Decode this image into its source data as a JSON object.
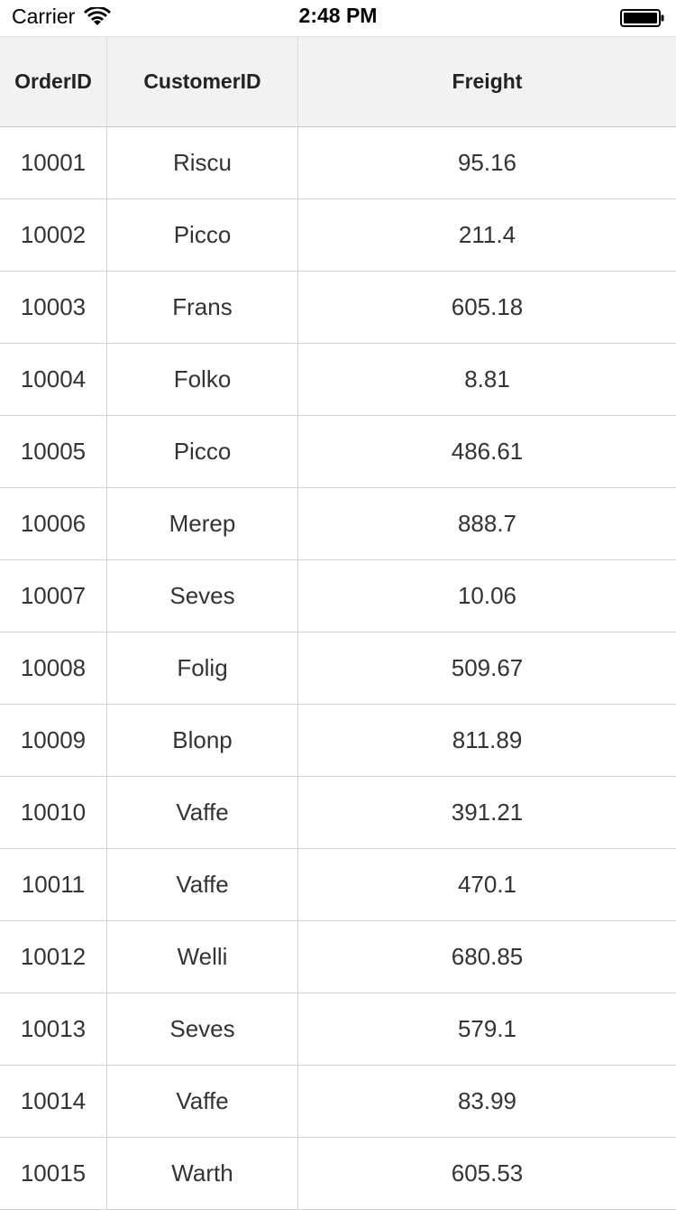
{
  "status_bar": {
    "carrier": "Carrier",
    "time": "2:48 PM"
  },
  "grid": {
    "columns": [
      "OrderID",
      "CustomerID",
      "Freight"
    ],
    "rows": [
      [
        "10001",
        "Riscu",
        "95.16"
      ],
      [
        "10002",
        "Picco",
        "211.4"
      ],
      [
        "10003",
        "Frans",
        "605.18"
      ],
      [
        "10004",
        "Folko",
        "8.81"
      ],
      [
        "10005",
        "Picco",
        "486.61"
      ],
      [
        "10006",
        "Merep",
        "888.7"
      ],
      [
        "10007",
        "Seves",
        "10.06"
      ],
      [
        "10008",
        "Folig",
        "509.67"
      ],
      [
        "10009",
        "Blonp",
        "811.89"
      ],
      [
        "10010",
        "Vaffe",
        "391.21"
      ],
      [
        "10011",
        "Vaffe",
        "470.1"
      ],
      [
        "10012",
        "Welli",
        "680.85"
      ],
      [
        "10013",
        "Seves",
        "579.1"
      ],
      [
        "10014",
        "Vaffe",
        "83.99"
      ],
      [
        "10015",
        "Warth",
        "605.53"
      ]
    ]
  },
  "colors": {
    "header_background": "#f2f2f2",
    "grid_line": "#d4d4d4",
    "text": "#333333"
  }
}
